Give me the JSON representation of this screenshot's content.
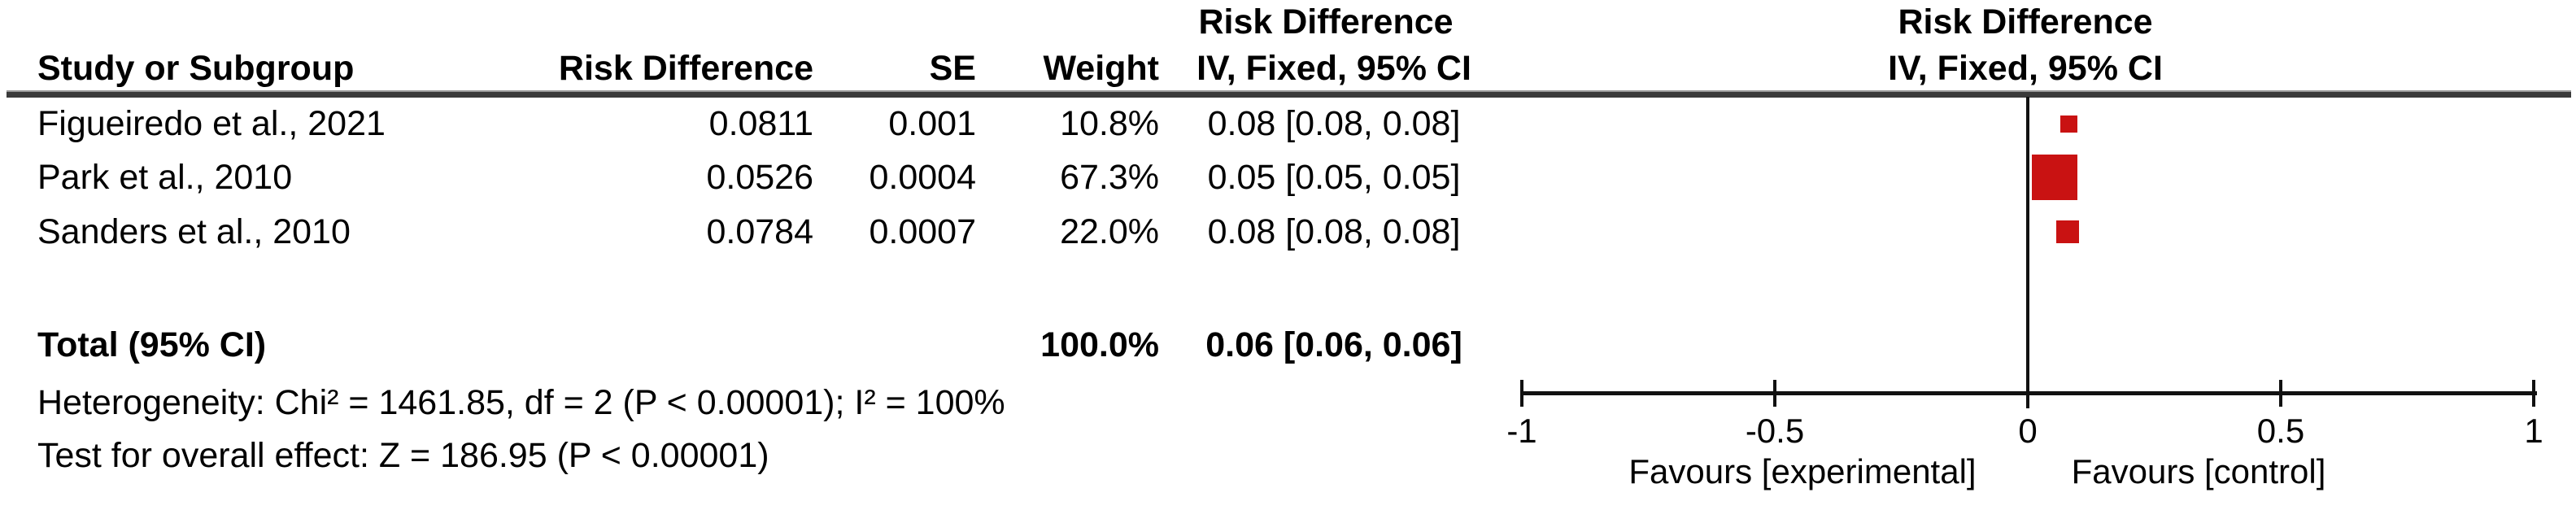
{
  "chart_data": {
    "type": "scatter",
    "variant": "forest-plot-meta-analysis",
    "effect_measure": "Risk Difference",
    "model": "IV, Fixed, 95% CI",
    "headers": {
      "stats_group_title": "Risk Difference",
      "plot_group_title": "Risk Difference",
      "study": "Study or Subgroup",
      "effect": "Risk Difference",
      "se": "SE",
      "weight": "Weight",
      "ci": "IV, Fixed, 95% CI",
      "plot_ci": "IV, Fixed, 95% CI"
    },
    "studies": [
      {
        "name": "Figueiredo et al., 2021",
        "risk_difference": "0.0811",
        "se": "0.001",
        "weight": "10.8%",
        "ci": "0.08 [0.08, 0.08]",
        "rd_value": 0.0811,
        "weight_value": 10.8
      },
      {
        "name": "Park et al., 2010",
        "risk_difference": "0.0526",
        "se": "0.0004",
        "weight": "67.3%",
        "ci": "0.05 [0.05, 0.05]",
        "rd_value": 0.0526,
        "weight_value": 67.3
      },
      {
        "name": "Sanders et al., 2010",
        "risk_difference": "0.0784",
        "se": "0.0007",
        "weight": "22.0%",
        "ci": "0.08 [0.08, 0.08]",
        "rd_value": 0.0784,
        "weight_value": 22.0
      }
    ],
    "total": {
      "label": "Total (95% CI)",
      "weight": "100.0%",
      "ci": "0.06 [0.06, 0.06]"
    },
    "heterogeneity": "Heterogeneity: Chi² = 1461.85, df = 2 (P < 0.00001); I² = 100%",
    "overall_effect": "Test for overall effect: Z = 186.95 (P < 0.00001)",
    "axis": {
      "min": -1,
      "max": 1,
      "ticks": [
        -1,
        -0.5,
        0,
        0.5,
        1
      ],
      "tick_labels": [
        "-1",
        "-0.5",
        "0",
        "0.5",
        "1"
      ]
    },
    "favours_left": "Favours [experimental]",
    "favours_right": "Favours [control]",
    "marker_color": "#C91212",
    "grid": false,
    "legend": false
  }
}
